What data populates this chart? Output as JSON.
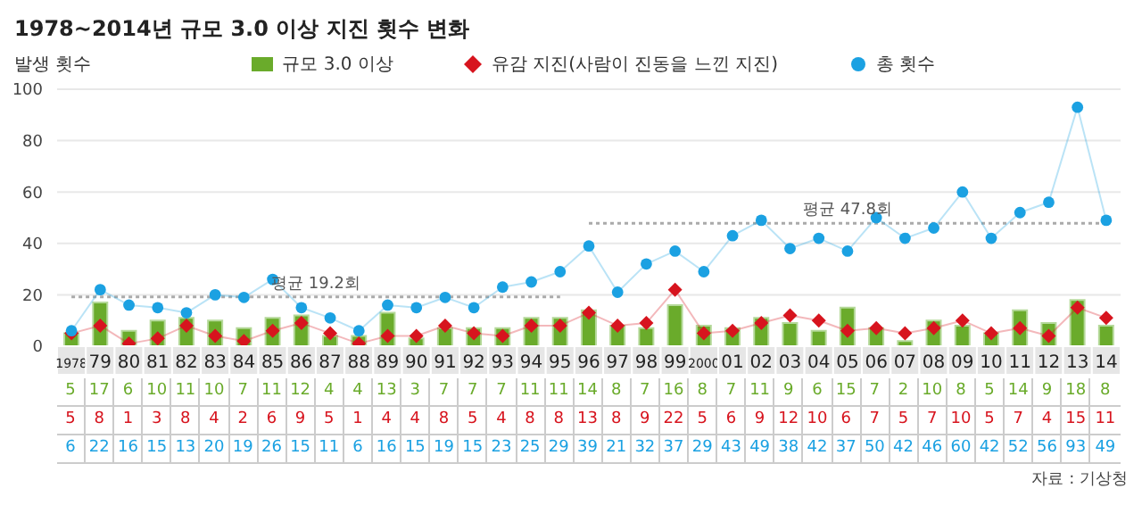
{
  "chart_data": {
    "type": "bar",
    "title": "1978∼2014년 규모 3.0 이상 지진 횟수 변화",
    "ylabel": "발생 횟수",
    "categories": [
      "1978",
      "79",
      "80",
      "81",
      "82",
      "83",
      "84",
      "85",
      "86",
      "87",
      "88",
      "89",
      "90",
      "91",
      "92",
      "93",
      "94",
      "95",
      "96",
      "97",
      "98",
      "99",
      "2000",
      "01",
      "02",
      "03",
      "04",
      "05",
      "06",
      "07",
      "08",
      "09",
      "10",
      "11",
      "12",
      "13",
      "14"
    ],
    "series": [
      {
        "name": "규모 3.0 이상",
        "color": "#6aab2b",
        "values": [
          5,
          17,
          6,
          10,
          11,
          10,
          7,
          11,
          12,
          4,
          4,
          13,
          3,
          7,
          7,
          7,
          11,
          11,
          14,
          8,
          7,
          16,
          8,
          7,
          11,
          9,
          6,
          15,
          7,
          2,
          10,
          8,
          5,
          14,
          9,
          18,
          8
        ]
      },
      {
        "name": "유감 지진(사람이 진동을 느낀 지진)",
        "type": "line",
        "color": "#d7141e",
        "marker": "diamond",
        "values": [
          5,
          8,
          1,
          3,
          8,
          4,
          2,
          6,
          9,
          5,
          1,
          4,
          4,
          8,
          5,
          4,
          8,
          8,
          13,
          8,
          9,
          22,
          5,
          6,
          9,
          12,
          10,
          6,
          7,
          5,
          7,
          10,
          5,
          7,
          4,
          15,
          11
        ]
      },
      {
        "name": "총 횟수",
        "type": "line",
        "color": "#1ba1e2",
        "marker": "circle",
        "values": [
          6,
          22,
          16,
          15,
          13,
          20,
          19,
          26,
          15,
          11,
          6,
          16,
          15,
          19,
          15,
          23,
          25,
          29,
          39,
          21,
          32,
          37,
          29,
          43,
          49,
          38,
          42,
          37,
          50,
          42,
          46,
          60,
          42,
          52,
          56,
          93,
          49
        ]
      }
    ],
    "ylim": [
      0,
      100
    ],
    "yticks": [
      0,
      20,
      40,
      60,
      80,
      100
    ],
    "grid": "y",
    "legend": "top",
    "data_labels": true,
    "ref_lines": [
      {
        "axis": "y",
        "value": 19.2,
        "label": "평균 19.2회",
        "color": "#aaaaaa",
        "line_style": "dotted"
      },
      {
        "axis": "y",
        "value": 47.8,
        "label": "평균 47.8회",
        "color": "#aaaaaa",
        "line_style": "dotted"
      }
    ],
    "annotations": [
      "자료 : 기상청"
    ]
  }
}
